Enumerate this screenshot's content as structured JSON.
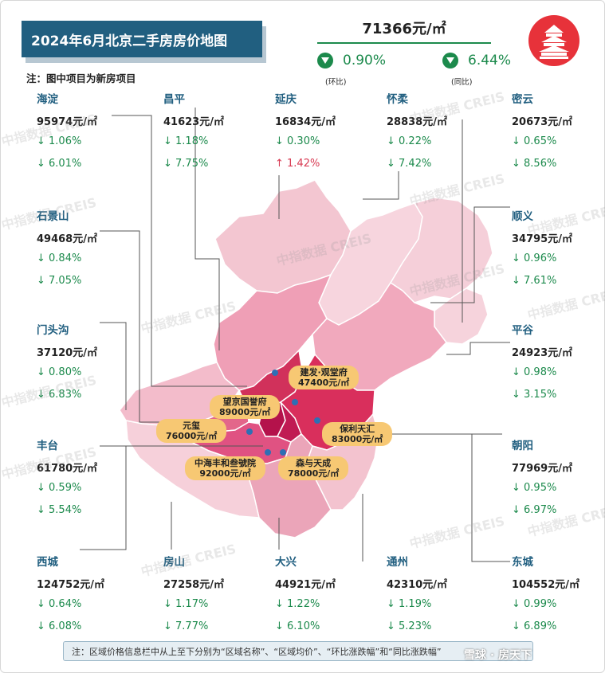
{
  "title": "2024年6月北京二手房房价地图",
  "note": "注：图中项目为新房项目",
  "summary": {
    "price": "71366元/㎡",
    "mom_value": "0.90%",
    "mom_caption": "(环比)",
    "yoy_value": "6.44%",
    "yoy_caption": "(同比)",
    "direction_icon": "down-triangle-icon"
  },
  "colors": {
    "banner": "#215f80",
    "green": "#1c8a4c",
    "red": "#d83a52",
    "label_pill": "#f7c873"
  },
  "districts": [
    {
      "name": "海淀",
      "price": "95974元/㎡",
      "mom": "↓ 1.06%",
      "yoy": "↓ 6.01%"
    },
    {
      "name": "昌平",
      "price": "41623元/㎡",
      "mom": "↓ 1.18%",
      "yoy": "↓ 7.75%"
    },
    {
      "name": "延庆",
      "price": "16834元/㎡",
      "mom": "↓ 0.30%",
      "yoy": "↑ 1.42%"
    },
    {
      "name": "怀柔",
      "price": "28838元/㎡",
      "mom": "↓ 0.22%",
      "yoy": "↓ 7.42%"
    },
    {
      "name": "密云",
      "price": "20673元/㎡",
      "mom": "↓ 0.65%",
      "yoy": "↓ 8.56%"
    },
    {
      "name": "石景山",
      "price": "49468元/㎡",
      "mom": "↓ 0.84%",
      "yoy": "↓ 7.05%"
    },
    {
      "name": "顺义",
      "price": "34795元/㎡",
      "mom": "↓ 0.96%",
      "yoy": "↓ 7.61%"
    },
    {
      "name": "门头沟",
      "price": "37120元/㎡",
      "mom": "↓ 0.80%",
      "yoy": "↓ 6.83%"
    },
    {
      "name": "平谷",
      "price": "24923元/㎡",
      "mom": "↓ 0.98%",
      "yoy": "↓ 3.15%"
    },
    {
      "name": "丰台",
      "price": "61780元/㎡",
      "mom": "↓ 0.59%",
      "yoy": "↓ 5.54%"
    },
    {
      "name": "朝阳",
      "price": "77969元/㎡",
      "mom": "↓ 0.95%",
      "yoy": "↓ 6.97%"
    },
    {
      "name": "西城",
      "price": "124752元/㎡",
      "mom": "↓ 0.64%",
      "yoy": "↓ 6.08%"
    },
    {
      "name": "房山",
      "price": "27258元/㎡",
      "mom": "↓ 1.17%",
      "yoy": "↓ 7.77%"
    },
    {
      "name": "大兴",
      "price": "44921元/㎡",
      "mom": "↓ 1.22%",
      "yoy": "↓ 6.10%"
    },
    {
      "name": "通州",
      "price": "42310元/㎡",
      "mom": "↓ 1.19%",
      "yoy": "↓ 5.23%"
    },
    {
      "name": "东城",
      "price": "104552元/㎡",
      "mom": "↓ 0.99%",
      "yoy": "↓ 6.89%"
    }
  ],
  "projects": [
    {
      "name": "建发·观堂府",
      "price": "47400元/㎡"
    },
    {
      "name": "望京国誉府",
      "price": "89000元/㎡"
    },
    {
      "name": "元玺",
      "price": "76000元/㎡"
    },
    {
      "name": "保利天汇",
      "price": "83000元/㎡"
    },
    {
      "name": "中海丰和叁號院",
      "price": "92000元/㎡"
    },
    {
      "name": "森与天成",
      "price": "78000元/㎡"
    }
  ],
  "watermark": "中指数据 CREIS",
  "footer": "注：区域价格信息栏中从上至下分别为“区域名称”、“区域均价”、“环比涨跌幅”和“同比涨跌幅”",
  "weibo_mark": "雪球 · 房天下"
}
